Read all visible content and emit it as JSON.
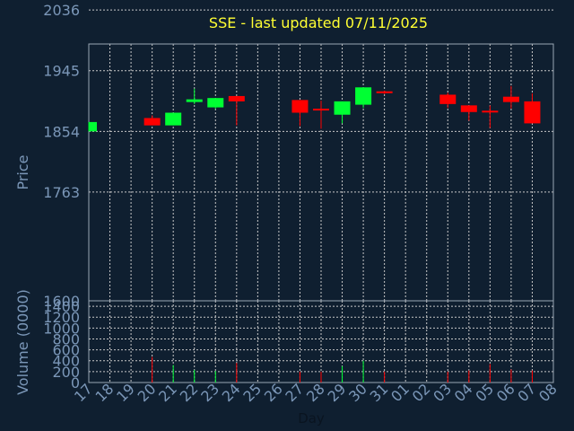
{
  "chart_data": {
    "type": "candlestick",
    "title": "SSE - last updated 07/11/2025",
    "xlabel": "Day",
    "ylabel_price": "Price",
    "ylabel_volume": "Volume (0000)",
    "price_ticks": [
      1600,
      1763,
      1854,
      1945,
      2036
    ],
    "volume_ticks": [
      0,
      200,
      400,
      600,
      800,
      1000,
      1200,
      1400
    ],
    "price_range": [
      1600,
      1985
    ],
    "volume_range": [
      0,
      1500
    ],
    "x_labels": [
      "17",
      "18",
      "19",
      "20",
      "21",
      "22",
      "23",
      "24",
      "25",
      "26",
      "27",
      "28",
      "29",
      "30",
      "31",
      "01",
      "02",
      "03",
      "04",
      "05",
      "06",
      "07",
      "08"
    ],
    "up_color": "#00ff33",
    "down_color": "#ff0000",
    "candles": [
      {
        "x": 0,
        "open": 1854,
        "close": 1868,
        "high": 1868,
        "low": 1854,
        "volume": 0
      },
      {
        "x": 3,
        "open": 1874,
        "close": 1863,
        "high": 1878,
        "low": 1863,
        "volume": 470
      },
      {
        "x": 4,
        "open": 1863,
        "close": 1882,
        "high": 1882,
        "low": 1863,
        "volume": 320
      },
      {
        "x": 5,
        "open": 1898,
        "close": 1902,
        "high": 1918,
        "low": 1895,
        "volume": 230
      },
      {
        "x": 6,
        "open": 1890,
        "close": 1904,
        "high": 1904,
        "low": 1888,
        "volume": 210
      },
      {
        "x": 7,
        "open": 1907,
        "close": 1899,
        "high": 1907,
        "low": 1863,
        "volume": 360
      },
      {
        "x": 10,
        "open": 1901,
        "close": 1882,
        "high": 1901,
        "low": 1862,
        "volume": 200
      },
      {
        "x": 11,
        "open": 1888,
        "close": 1886,
        "high": 1900,
        "low": 1858,
        "volume": 200
      },
      {
        "x": 12,
        "open": 1879,
        "close": 1899,
        "high": 1899,
        "low": 1866,
        "volume": 300
      },
      {
        "x": 13,
        "open": 1894,
        "close": 1920,
        "high": 1920,
        "low": 1889,
        "volume": 400
      },
      {
        "x": 14,
        "open": 1914,
        "close": 1912,
        "high": 1915,
        "low": 1910,
        "volume": 200
      },
      {
        "x": 17,
        "open": 1909,
        "close": 1895,
        "high": 1912,
        "low": 1889,
        "volume": 200
      },
      {
        "x": 18,
        "open": 1893,
        "close": 1883,
        "high": 1893,
        "low": 1870,
        "volume": 220
      },
      {
        "x": 19,
        "open": 1885,
        "close": 1883,
        "high": 1893,
        "low": 1859,
        "volume": 340
      },
      {
        "x": 20,
        "open": 1906,
        "close": 1898,
        "high": 1922,
        "low": 1888,
        "volume": 240
      },
      {
        "x": 21,
        "open": 1899,
        "close": 1866,
        "high": 1911,
        "low": 1866,
        "volume": 220
      }
    ]
  }
}
